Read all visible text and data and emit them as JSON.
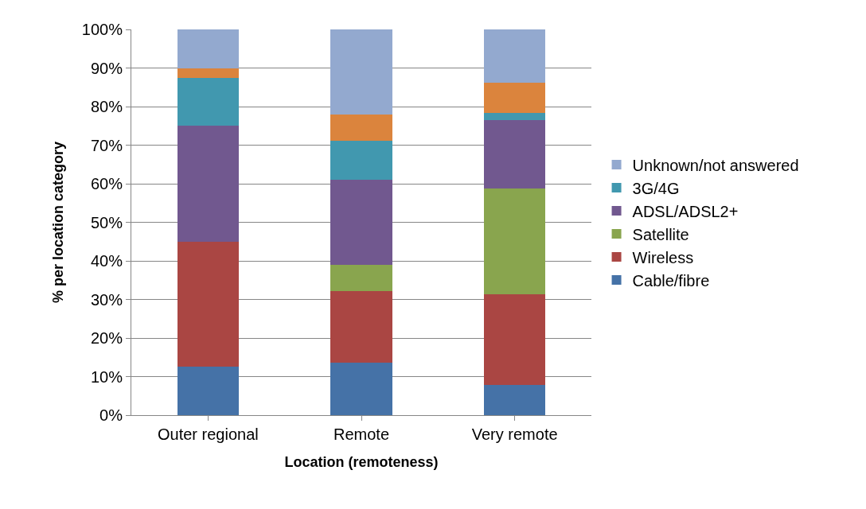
{
  "chart_data": {
    "type": "bar",
    "stacked": true,
    "xlabel": "Location (remoteness)",
    "ylabel": "% per location category",
    "categories": [
      "Outer regional",
      "Remote",
      "Very remote"
    ],
    "series": [
      {
        "name": "Cable/fibre",
        "color": "#4572a7",
        "values": [
          12.5,
          13.6,
          7.8
        ]
      },
      {
        "name": "Wireless",
        "color": "#aa4643",
        "values": [
          32.5,
          18.6,
          23.5
        ]
      },
      {
        "name": "Satellite",
        "color": "#89a54e",
        "values": [
          0,
          6.8,
          27.5
        ]
      },
      {
        "name": "ADSL/ADSL2+",
        "color": "#71588f",
        "values": [
          30,
          22,
          17.6
        ]
      },
      {
        "name": "3G/4G",
        "color": "#4198af",
        "values": [
          12.5,
          10.2,
          2
        ]
      },
      {
        "color": "#db843d",
        "values": [
          2.5,
          6.8,
          7.8
        ]
      },
      {
        "name": "Unknown/not answered",
        "color": "#93a9cf",
        "values": [
          10,
          22,
          13.8
        ]
      }
    ],
    "ylim": [
      0,
      100
    ],
    "yticks": [
      {
        "value": 0,
        "label": "0%"
      },
      {
        "value": 10,
        "label": "10%"
      },
      {
        "value": 20,
        "label": "20%"
      },
      {
        "value": 30,
        "label": "30%"
      },
      {
        "value": 40,
        "label": "40%"
      },
      {
        "value": 50,
        "label": "50%"
      },
      {
        "value": 60,
        "label": "60%"
      },
      {
        "value": 70,
        "label": "70%"
      },
      {
        "value": 80,
        "label": "80%"
      },
      {
        "value": 90,
        "label": "90%"
      },
      {
        "value": 100,
        "label": "100%"
      }
    ],
    "grid": "y",
    "legend": "right"
  }
}
